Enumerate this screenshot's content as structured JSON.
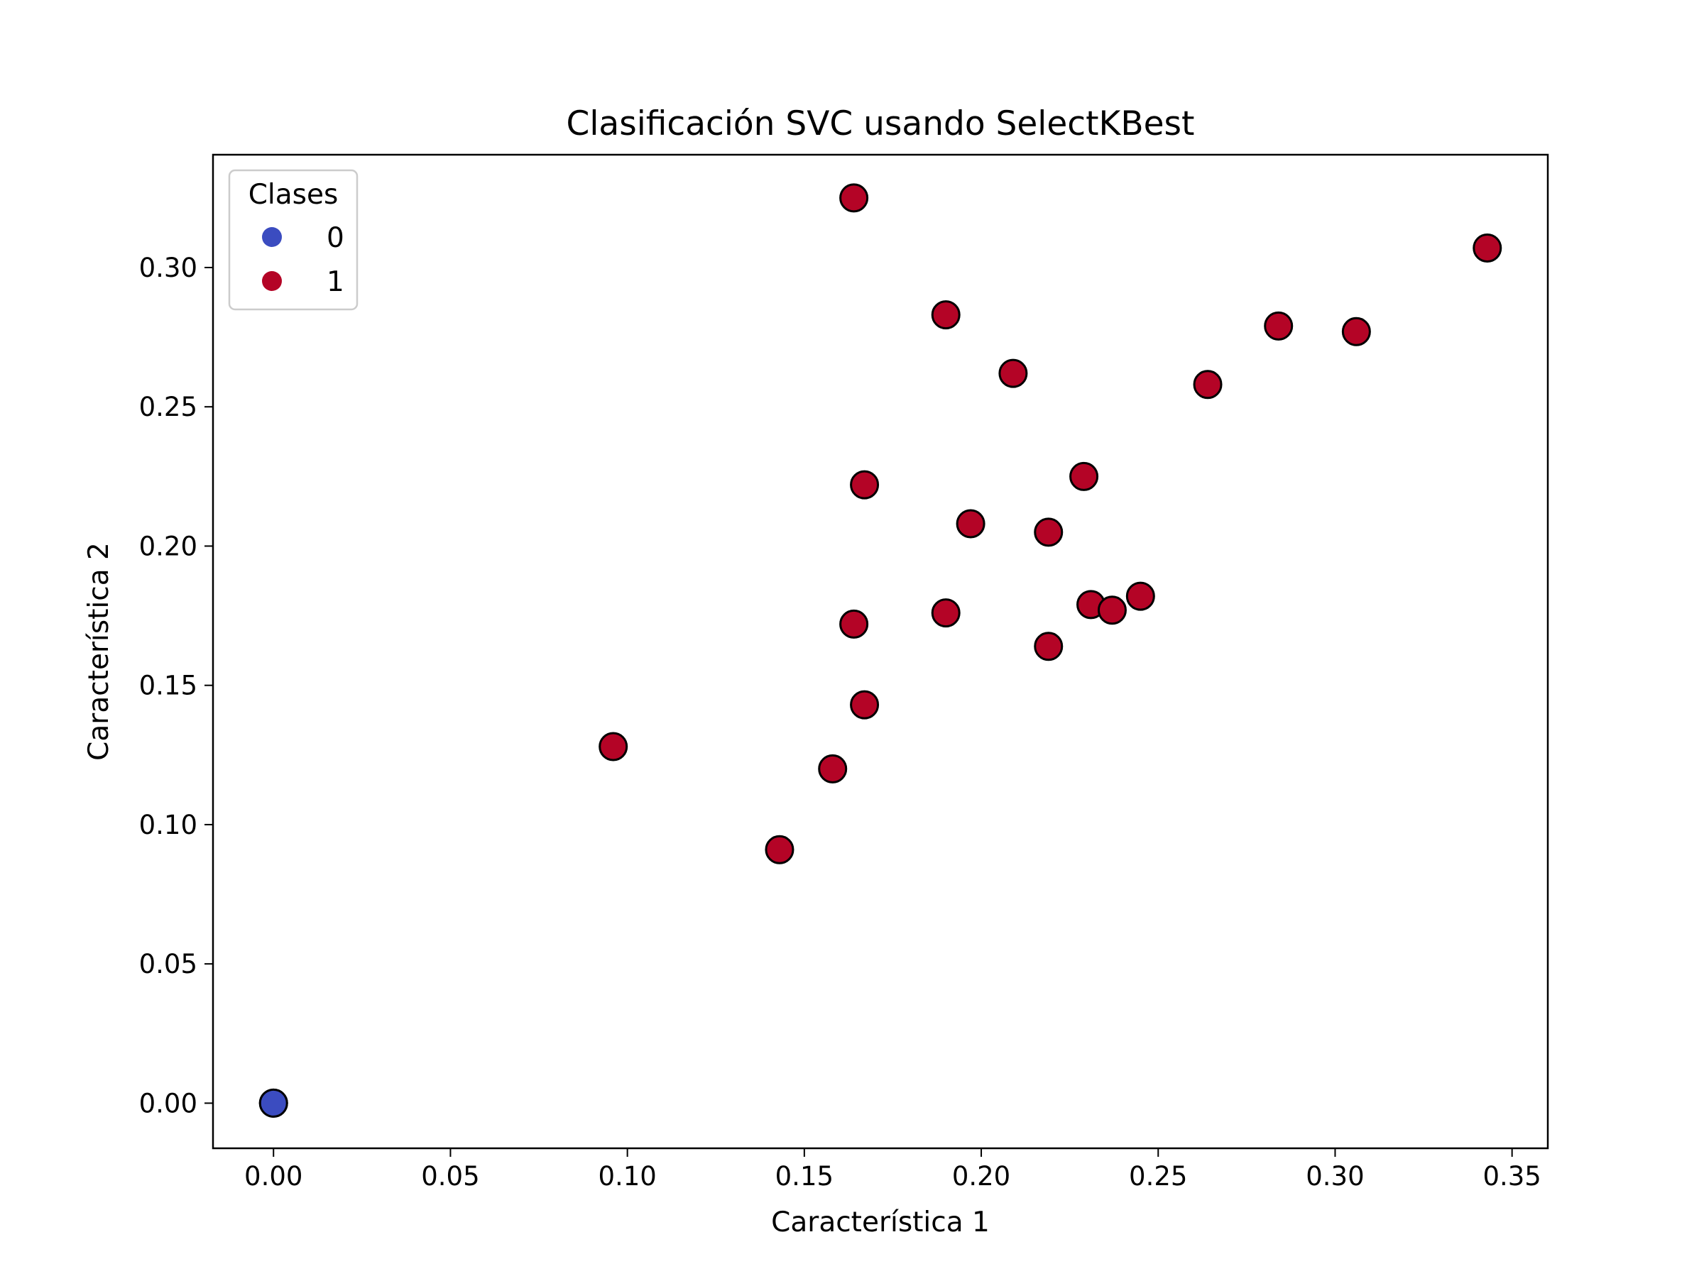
{
  "chart_data": {
    "type": "scatter",
    "title": "Clasificación SVC usando SelectKBest",
    "xlabel": "Característica 1",
    "ylabel": "Característica 2",
    "xlim": [
      -0.0171,
      0.3601
    ],
    "ylim": [
      -0.0162,
      0.3405
    ],
    "xticks": [
      {
        "value": 0.0,
        "label": "0.00"
      },
      {
        "value": 0.05,
        "label": "0.05"
      },
      {
        "value": 0.1,
        "label": "0.10"
      },
      {
        "value": 0.15,
        "label": "0.15"
      },
      {
        "value": 0.2,
        "label": "0.20"
      },
      {
        "value": 0.25,
        "label": "0.25"
      },
      {
        "value": 0.3,
        "label": "0.30"
      },
      {
        "value": 0.35,
        "label": "0.35"
      }
    ],
    "yticks": [
      {
        "value": 0.0,
        "label": "0.00"
      },
      {
        "value": 0.05,
        "label": "0.05"
      },
      {
        "value": 0.1,
        "label": "0.10"
      },
      {
        "value": 0.15,
        "label": "0.15"
      },
      {
        "value": 0.2,
        "label": "0.20"
      },
      {
        "value": 0.25,
        "label": "0.25"
      },
      {
        "value": 0.3,
        "label": "0.30"
      }
    ],
    "grid": false,
    "legend": {
      "title": "Clases",
      "placement": "top-left",
      "entries": [
        {
          "label": "0",
          "color": "#3b4cc0"
        },
        {
          "label": "1",
          "color": "#b40426"
        }
      ]
    },
    "marker_edge_color": "#000000",
    "series": [
      {
        "name": "0",
        "color": "#3b4cc0",
        "points": [
          {
            "x": 0.0,
            "y": 0.0
          },
          {
            "x": 0.0,
            "y": 0.0
          }
        ]
      },
      {
        "name": "1",
        "color": "#b40426",
        "points": [
          {
            "x": 0.164,
            "y": 0.325
          },
          {
            "x": 0.343,
            "y": 0.307
          },
          {
            "x": 0.19,
            "y": 0.283
          },
          {
            "x": 0.284,
            "y": 0.279
          },
          {
            "x": 0.306,
            "y": 0.277
          },
          {
            "x": 0.209,
            "y": 0.262
          },
          {
            "x": 0.264,
            "y": 0.258
          },
          {
            "x": 0.229,
            "y": 0.225
          },
          {
            "x": 0.167,
            "y": 0.222
          },
          {
            "x": 0.197,
            "y": 0.208
          },
          {
            "x": 0.219,
            "y": 0.205
          },
          {
            "x": 0.245,
            "y": 0.182
          },
          {
            "x": 0.231,
            "y": 0.179
          },
          {
            "x": 0.237,
            "y": 0.177
          },
          {
            "x": 0.19,
            "y": 0.176
          },
          {
            "x": 0.164,
            "y": 0.172
          },
          {
            "x": 0.219,
            "y": 0.164
          },
          {
            "x": 0.167,
            "y": 0.143
          },
          {
            "x": 0.096,
            "y": 0.128
          },
          {
            "x": 0.158,
            "y": 0.12
          },
          {
            "x": 0.143,
            "y": 0.091
          }
        ]
      }
    ]
  }
}
